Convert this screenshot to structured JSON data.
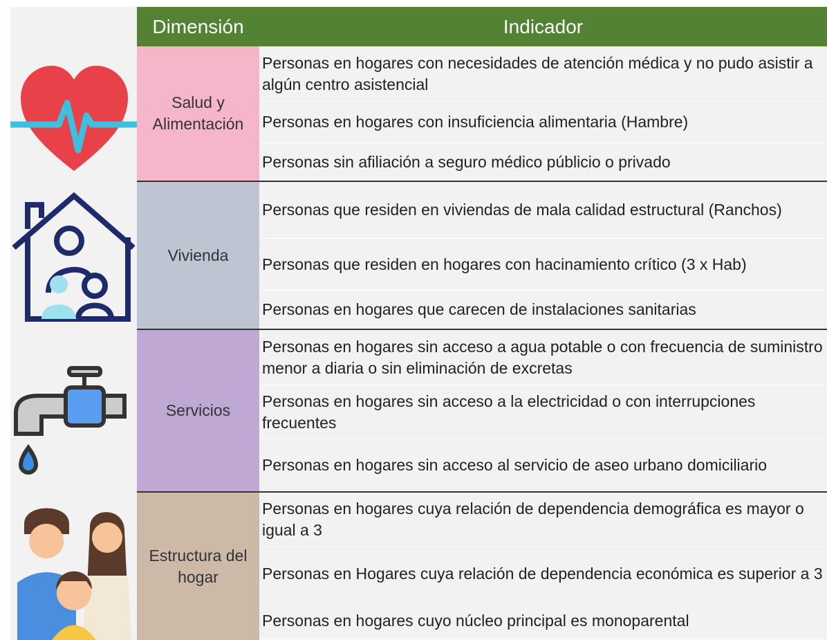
{
  "header": {
    "columns": [
      "Dimensión",
      "Indicador"
    ]
  },
  "groups": [
    {
      "dimension": "Salud y Alimentación",
      "indicators": [
        "Personas en hogares con necesidades de atención médica y no pudo asistir a algún centro asistencial",
        "Personas en hogares con insuficiencia alimentaria (Hambre)",
        "Personas sin afiliación a seguro médico públicio o privado"
      ]
    },
    {
      "dimension": "Vivienda",
      "indicators": [
        "Personas que residen en viviendas de mala calidad estructural (Ranchos)",
        "Personas que residen en hogares con hacinamiento crítico (3 x Hab)",
        "Personas en hogares que carecen de instalaciones sanitarias"
      ]
    },
    {
      "dimension": "Servicios",
      "indicators": [
        "Personas en hogares sin acceso a agua potable o con frecuencia de suministro menor a diaria o sin eliminación de excretas",
        "Personas en hogares sin acceso a la electricidad o con interrupciones frecuentes",
        "Personas en hogares sin acceso al servicio de aseo  urbano domiciliario"
      ]
    },
    {
      "dimension": "Estructura del hogar",
      "indicators": [
        "Personas en hogares cuya relación de dependencia demográfica es mayor o igual a 3",
        "Personas en Hogares cuya relación de dependencia económica es superior a 3",
        "Personas en hogares cuyo núcleo principal es monoparental"
      ]
    }
  ]
}
